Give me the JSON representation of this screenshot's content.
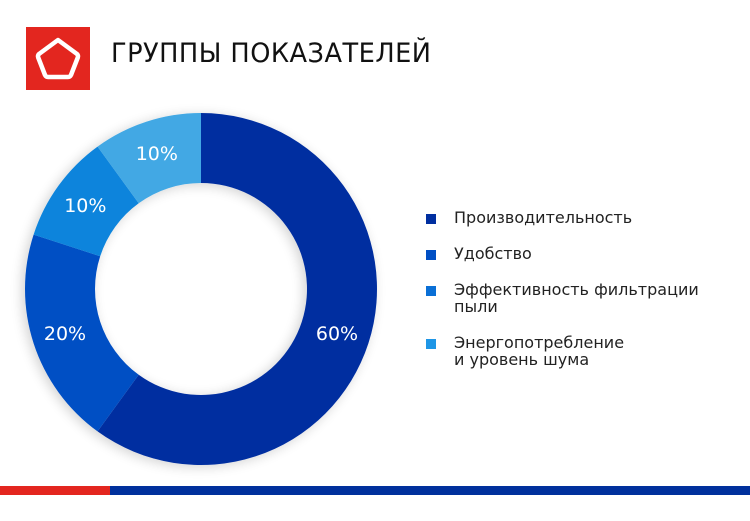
{
  "header": {
    "title": "ГРУППЫ ПОКАЗАТЕЛЕЙ",
    "logo_icon": "pentagon-icon",
    "logo_color": "#e3261f"
  },
  "chart_data": {
    "type": "pie",
    "variant": "donut",
    "title": "ГРУППЫ ПОКАЗАТЕЛЕЙ",
    "categories": [
      "Производительность",
      "Удобство",
      "Эффективность фильтрации пыли",
      "Энергопотребление и уровень шума"
    ],
    "values": [
      60,
      20,
      10,
      10
    ],
    "value_labels": [
      "60%",
      "20%",
      "10%",
      "10%"
    ],
    "colors": [
      "#002fa0",
      "#004fc4",
      "#0a84dc",
      "#43a8e4"
    ],
    "legend_position": "right",
    "start_angle": "12 o'clock, clockwise"
  },
  "legend": {
    "items": [
      {
        "label": "Производительность",
        "color": "#002fa0"
      },
      {
        "label": "Удобство",
        "color": "#004fc4"
      },
      {
        "label": "Эффективность фильтрации\nпыли",
        "color": "#0a6fd6"
      },
      {
        "label": "Энергопотребление\nи уровень шума",
        "color": "#1e96e6"
      }
    ]
  },
  "footer": {
    "bar_colors": [
      "#e3261f",
      "#00309c"
    ]
  }
}
